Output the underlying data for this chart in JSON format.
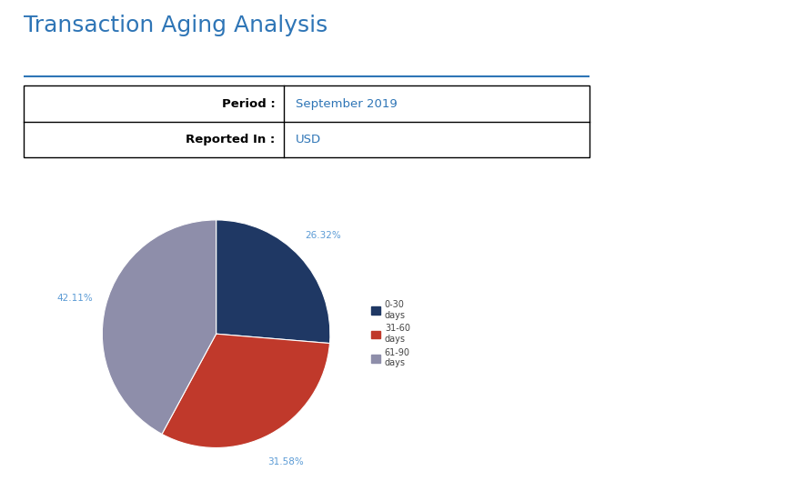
{
  "title": "Transaction Aging Analysis",
  "title_color": "#2E75B6",
  "title_fontsize": 18,
  "line_color": "#2E75B6",
  "table_labels": [
    "Period :",
    "Reported In :"
  ],
  "table_values": [
    "September 2019",
    "USD"
  ],
  "table_value_color": "#2E75B6",
  "table_label_color": "#000000",
  "pie_labels": [
    "0-30\ndays",
    "31-60\ndays",
    "61-90\ndays"
  ],
  "pie_values": [
    26.32,
    31.58,
    42.11
  ],
  "pie_colors": [
    "#1F3864",
    "#C0392B",
    "#8E8EAA"
  ],
  "pie_autopct": [
    "26.32%",
    "31.58%",
    "42.11%"
  ],
  "autopct_color": "#5B9BD5",
  "legend_fontsize": 7,
  "background_color": "#FFFFFF"
}
